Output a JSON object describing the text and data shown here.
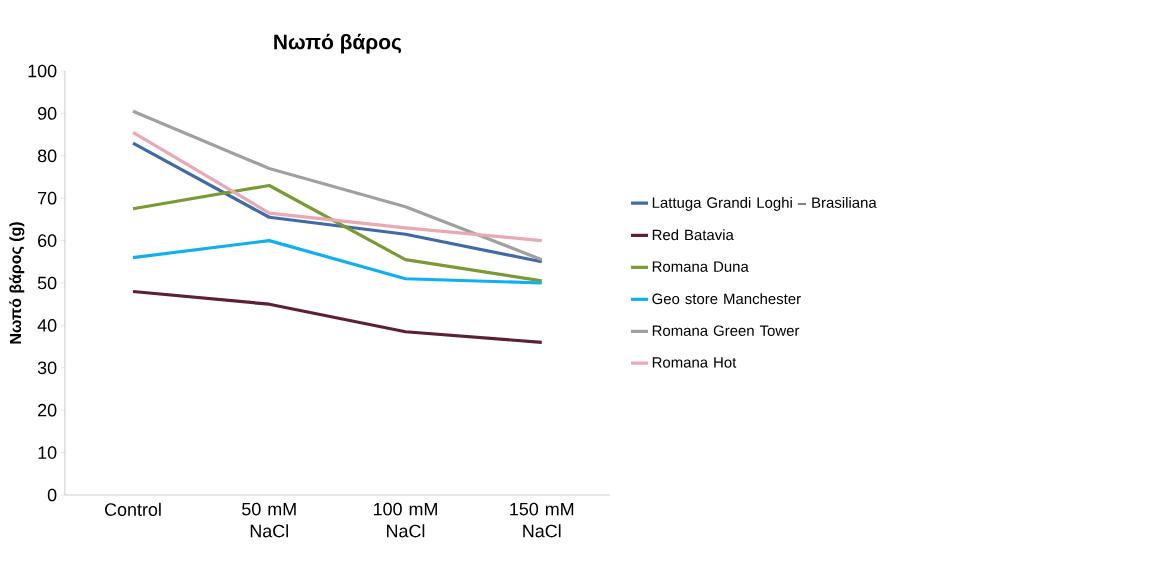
{
  "chart_data": {
    "type": "line",
    "title": "Νωπό βάρος",
    "ylabel": "Νωπό βάρος (g)",
    "categories": [
      "Control",
      "50 mM NaCl",
      "100 mM NaCl",
      "150 mM NaCl"
    ],
    "ylim": [
      0,
      100
    ],
    "yticks": [
      0,
      10,
      20,
      30,
      40,
      50,
      60,
      70,
      80,
      90,
      100
    ],
    "grid": false,
    "legend": "right",
    "marker": "none",
    "line_style": "solid",
    "series": [
      {
        "name": "Lattuga Grandi Loghi – Brasiliana",
        "color": "#3f6aa8",
        "values": [
          83,
          65.5,
          61.5,
          55
        ]
      },
      {
        "name": "Red Batavia",
        "color": "#5c1f35",
        "values": [
          48,
          45,
          38.5,
          36
        ]
      },
      {
        "name": "Romana Duna",
        "color": "#7a9a35",
        "values": [
          67.5,
          73,
          55.5,
          50.5
        ]
      },
      {
        "name": "Geo store Manchester",
        "color": "#0fb0ef",
        "values": [
          56,
          60,
          51,
          50
        ]
      },
      {
        "name": "Romana Green Tower",
        "color": "#a0a0a0",
        "values": [
          90.5,
          77,
          68,
          55.5
        ]
      },
      {
        "name": "Romana Hot",
        "color": "#e8a8b4",
        "values": [
          85.5,
          66.5,
          63,
          60
        ]
      }
    ]
  }
}
